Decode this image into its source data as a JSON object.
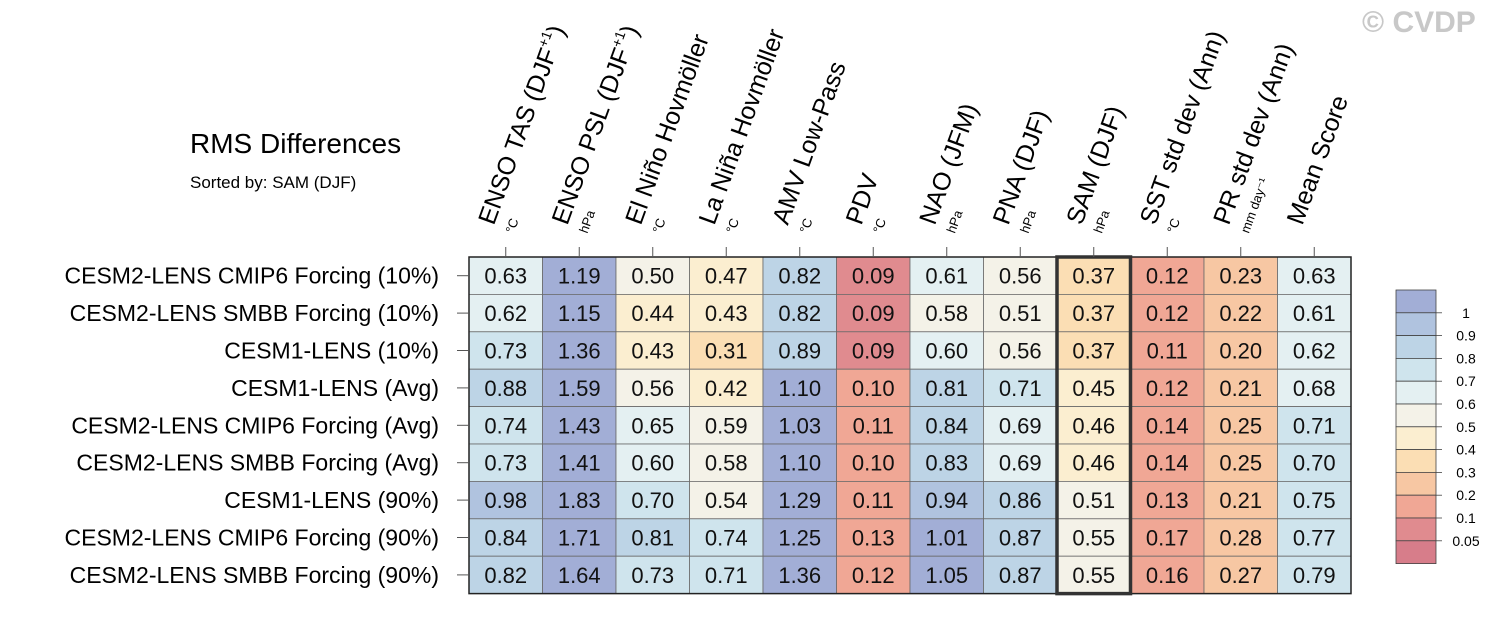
{
  "title": "RMS Differences",
  "subtitle": "Sorted by: SAM (DJF)",
  "watermark": "© CVDP",
  "chart_data": {
    "type": "heatmap",
    "title": "RMS Differences",
    "subtitle": "Sorted by: SAM (DJF)",
    "columns": [
      {
        "label": "ENSO TAS (DJF",
        "sup": "+1",
        "close": ")",
        "unit": "°C"
      },
      {
        "label": "ENSO PSL (DJF",
        "sup": "+1",
        "close": ")",
        "unit": "hPa"
      },
      {
        "label": "El Niño Hovmöller",
        "sup": "",
        "close": "",
        "unit": "°C"
      },
      {
        "label": "La Niña Hovmöller",
        "sup": "",
        "close": "",
        "unit": "°C"
      },
      {
        "label": "AMV Low-Pass",
        "sup": "",
        "close": "",
        "unit": "°C"
      },
      {
        "label": "PDV",
        "sup": "",
        "close": "",
        "unit": "°C"
      },
      {
        "label": "NAO (JFM)",
        "sup": "",
        "close": "",
        "unit": "hPa"
      },
      {
        "label": "PNA (DJF)",
        "sup": "",
        "close": "",
        "unit": "hPa"
      },
      {
        "label": "SAM (DJF)",
        "sup": "",
        "close": "",
        "unit": "hPa"
      },
      {
        "label": "SST std dev (Ann)",
        "sup": "",
        "close": "",
        "unit": "°C"
      },
      {
        "label": "PR std dev (Ann)",
        "sup": "",
        "close": "",
        "unit": "mm day⁻¹"
      },
      {
        "label": "Mean Score",
        "sup": "",
        "close": "",
        "unit": ""
      }
    ],
    "rows": [
      "CESM2-LENS CMIP6 Forcing (10%)",
      "CESM2-LENS SMBB Forcing (10%)",
      "CESM1-LENS (10%)",
      "CESM1-LENS (Avg)",
      "CESM2-LENS CMIP6 Forcing (Avg)",
      "CESM2-LENS SMBB Forcing (Avg)",
      "CESM1-LENS (90%)",
      "CESM2-LENS CMIP6 Forcing (90%)",
      "CESM2-LENS SMBB Forcing (90%)"
    ],
    "values": [
      [
        "0.63",
        "1.19",
        "0.50",
        "0.47",
        "0.82",
        "0.09",
        "0.61",
        "0.56",
        "0.37",
        "0.12",
        "0.23",
        "0.63"
      ],
      [
        "0.62",
        "1.15",
        "0.44",
        "0.43",
        "0.82",
        "0.09",
        "0.58",
        "0.51",
        "0.37",
        "0.12",
        "0.22",
        "0.61"
      ],
      [
        "0.73",
        "1.36",
        "0.43",
        "0.31",
        "0.89",
        "0.09",
        "0.60",
        "0.56",
        "0.37",
        "0.11",
        "0.20",
        "0.62"
      ],
      [
        "0.88",
        "1.59",
        "0.56",
        "0.42",
        "1.10",
        "0.10",
        "0.81",
        "0.71",
        "0.45",
        "0.12",
        "0.21",
        "0.68"
      ],
      [
        "0.74",
        "1.43",
        "0.65",
        "0.59",
        "1.03",
        "0.11",
        "0.84",
        "0.69",
        "0.46",
        "0.14",
        "0.25",
        "0.71"
      ],
      [
        "0.73",
        "1.41",
        "0.60",
        "0.58",
        "1.10",
        "0.10",
        "0.83",
        "0.69",
        "0.46",
        "0.14",
        "0.25",
        "0.70"
      ],
      [
        "0.98",
        "1.83",
        "0.70",
        "0.54",
        "1.29",
        "0.11",
        "0.94",
        "0.86",
        "0.51",
        "0.13",
        "0.21",
        "0.75"
      ],
      [
        "0.84",
        "1.71",
        "0.81",
        "0.74",
        "1.25",
        "0.13",
        "1.01",
        "0.87",
        "0.55",
        "0.17",
        "0.28",
        "0.77"
      ],
      [
        "0.82",
        "1.64",
        "0.73",
        "0.71",
        "1.36",
        "0.12",
        "1.05",
        "0.87",
        "0.55",
        "0.16",
        "0.27",
        "0.79"
      ]
    ],
    "highlight_column": "SAM (DJF)",
    "colorbar": {
      "levels": [
        "1",
        "0.9",
        "0.8",
        "0.7",
        "0.6",
        "0.5",
        "0.4",
        "0.3",
        "0.2",
        "0.1",
        "0.05"
      ],
      "colors": [
        "#a2aed6",
        "#b0c3df",
        "#bdd4e6",
        "#cfe4ed",
        "#e4f0f2",
        "#f4f2e8",
        "#fbeed0",
        "#fbdeb4",
        "#f7c7a3",
        "#f0a795",
        "#e08b8f",
        "#d77d8a"
      ]
    }
  }
}
